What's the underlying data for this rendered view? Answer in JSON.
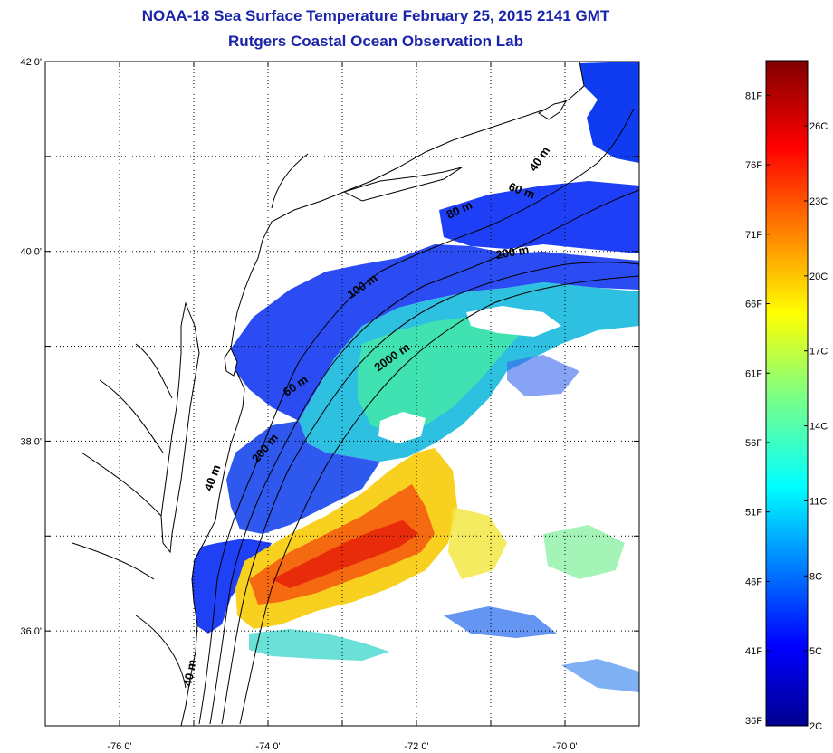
{
  "title": "NOAA-18 Sea Surface Temperature February 25, 2015 2141 GMT",
  "subtitle": "Rutgers Coastal Ocean Observation Lab",
  "map": {
    "lon_range": [
      -77,
      -69
    ],
    "lat_range": [
      35,
      42
    ],
    "lat_ticks": [
      {
        "value": 42,
        "label": "42 0'"
      },
      {
        "value": 40,
        "label": "40 0'"
      },
      {
        "value": 38,
        "label": "38 0'"
      },
      {
        "value": 36,
        "label": "36 0'"
      }
    ],
    "lon_ticks": [
      {
        "value": -76,
        "label": "-76 0'"
      },
      {
        "value": -74,
        "label": "-74 0'"
      },
      {
        "value": -72,
        "label": "-72 0'"
      },
      {
        "value": -70,
        "label": "-70 0'"
      }
    ],
    "contour_labels": [
      {
        "text": "40 m",
        "lon": -70.3,
        "lat": 40.95,
        "angle": -55
      },
      {
        "text": "60 m",
        "lon": -70.6,
        "lat": 40.6,
        "angle": 20
      },
      {
        "text": "80 m",
        "lon": -71.4,
        "lat": 40.4,
        "angle": -25
      },
      {
        "text": "200 m",
        "lon": -70.7,
        "lat": 39.95,
        "angle": -10
      },
      {
        "text": "100 m",
        "lon": -72.7,
        "lat": 39.6,
        "angle": -35
      },
      {
        "text": "2000 m",
        "lon": -72.3,
        "lat": 38.85,
        "angle": -35
      },
      {
        "text": "60 m",
        "lon": -73.6,
        "lat": 38.55,
        "angle": -35
      },
      {
        "text": "200 m",
        "lon": -74.0,
        "lat": 37.9,
        "angle": -50
      },
      {
        "text": "40 m",
        "lon": -74.7,
        "lat": 37.6,
        "angle": -70
      },
      {
        "text": "40 m",
        "lon": -75.0,
        "lat": 35.55,
        "angle": -80
      }
    ]
  },
  "colorbar": {
    "colormap": "jet",
    "fahrenheit_labels": [
      "81F",
      "76F",
      "71F",
      "66F",
      "61F",
      "56F",
      "51F",
      "46F",
      "41F",
      "36F"
    ],
    "celsius_labels": [
      "26C",
      "23C",
      "20C",
      "17C",
      "14C",
      "11C",
      "8C",
      "5C",
      "2C"
    ]
  }
}
